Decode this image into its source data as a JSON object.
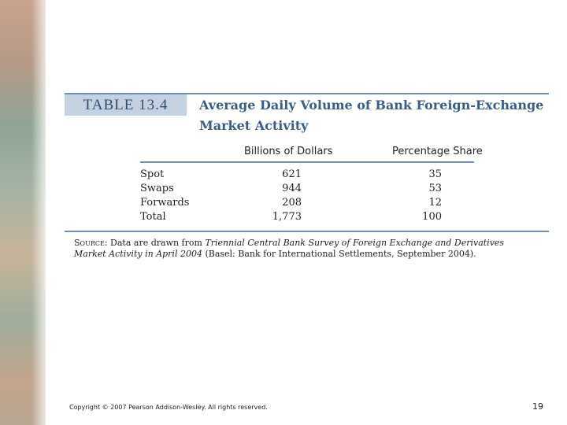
{
  "table": {
    "label": "TABLE 13.4",
    "title": "Average Daily Volume of Bank Foreign-Exchange Market Activity",
    "columns": [
      "Billions of Dollars",
      "Percentage Share"
    ],
    "rows": [
      [
        "Spot",
        "621",
        "35"
      ],
      [
        "Swaps",
        "944",
        "53"
      ],
      [
        "Forwards",
        "208",
        "12"
      ],
      [
        "Total",
        "1,773",
        "100"
      ]
    ],
    "source": {
      "lead": "Source:",
      "text": " Data are drawn from ",
      "italic": "Triennial Central Bank Survey of Foreign Exchange and Derivatives Market Activity in April 2004",
      "tail": " (Basel: Bank for International Settlements, September 2004)."
    }
  },
  "footer": {
    "copyright": "Copyright © 2007 Pearson Addison-Wesley. All rights reserved.",
    "page": "19"
  }
}
